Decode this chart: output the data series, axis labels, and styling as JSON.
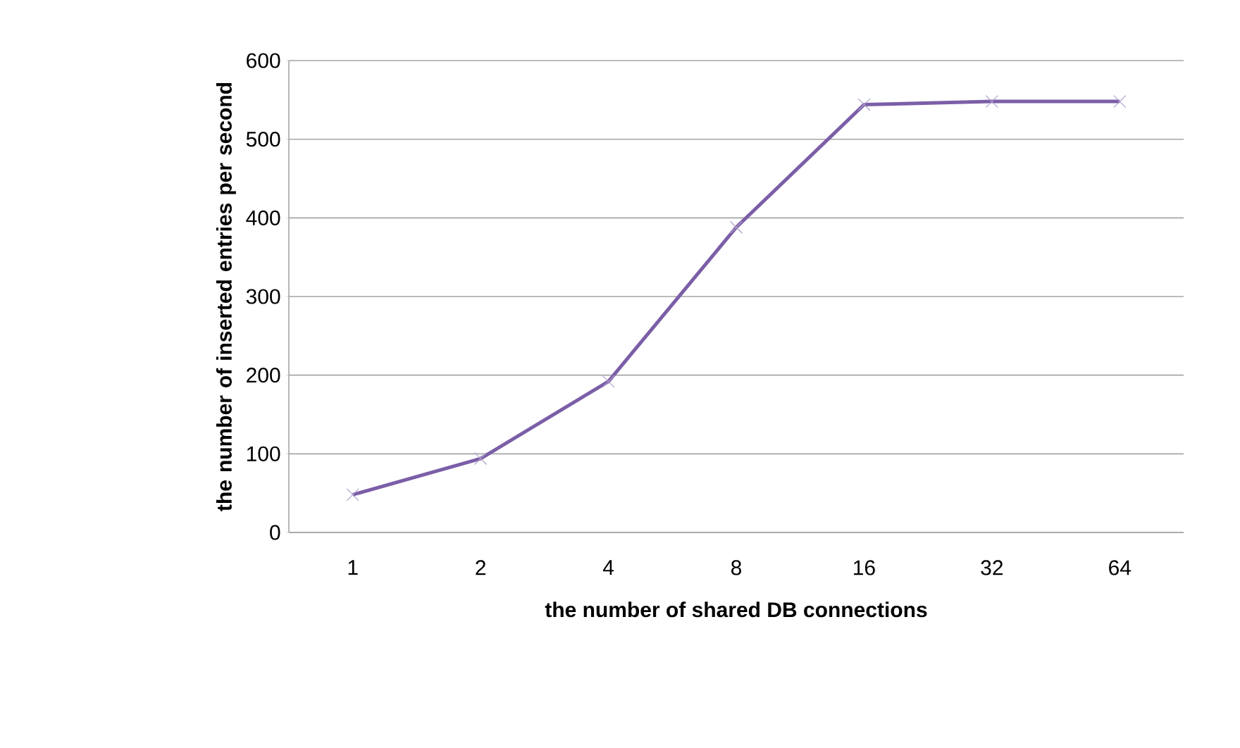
{
  "chart_data": {
    "type": "line",
    "xlabel": "the number of shared DB connections",
    "ylabel": "the number of inserted entries per second",
    "categories": [
      "1",
      "2",
      "4",
      "8",
      "16",
      "32",
      "64"
    ],
    "series": [
      {
        "color": "#7b5ea7",
        "values": [
          48,
          94,
          192,
          388,
          544,
          548,
          548
        ]
      }
    ],
    "ylim": [
      0,
      600
    ],
    "yticks": [
      0,
      100,
      200,
      300,
      400,
      500,
      600
    ],
    "grid": "y",
    "marker": "cross",
    "line_style": "solid"
  }
}
